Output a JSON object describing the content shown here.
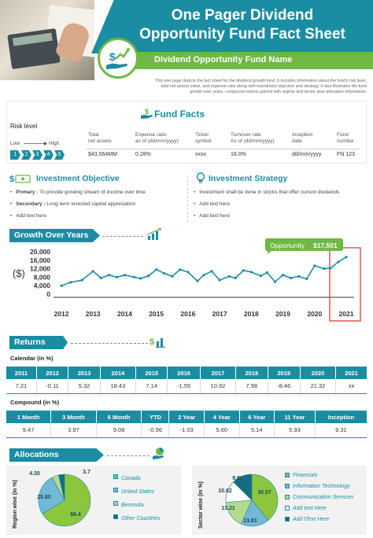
{
  "header": {
    "title_line1": "One Pager Dividend",
    "title_line2": "Opportunity Fund Fact Sheet",
    "subtitle": "Dividend Opportunity Fund Name",
    "description": "This one page depicts the fact sheet for the dividend growth fund. It includes information about the fund's risk level, total net assets value, and expense ratio along with investment objective and strategy. It also illustrates the fund growth over years, compound returns gained with regime and sector wise allocation information."
  },
  "fund_facts": {
    "title": "Fund Facts",
    "risk_level_label": "Risk level",
    "low_label": "Low",
    "high_label": "High",
    "risk_steps": [
      "1",
      "2",
      "3",
      "4",
      "5"
    ],
    "columns": [
      {
        "label1": "Total",
        "label2": "net assets",
        "value": "$43,564MM"
      },
      {
        "label1": "Expense ratio",
        "label2": "as of (dd/mm/yyyy)",
        "value": "0.28%"
      },
      {
        "label1": "Ticker",
        "label2": "symbol",
        "value": "xxxx"
      },
      {
        "label1": "Turnover rate",
        "label2": "As of (dd/mm/yyyy)",
        "value": "18.0%"
      },
      {
        "label1": "Inception",
        "label2": "date",
        "value": "dd/mm/yyyy"
      },
      {
        "label1": "Fund",
        "label2": "number",
        "value": "FN 123"
      }
    ]
  },
  "objective": {
    "title": "Investment Objective",
    "items": [
      {
        "bold": "Primary :",
        "text": " To provide growing stream of income over time"
      },
      {
        "bold": "Secondary :",
        "text": " Long term invested capital appreciation"
      },
      {
        "bold": "",
        "text": "Add text here"
      }
    ]
  },
  "strategy": {
    "title": "Investment Strategy",
    "items": [
      "Investment shall be done in stocks that offer current dividends",
      "Add text here",
      "Add text here"
    ]
  },
  "growth": {
    "title": "Growth Over Years",
    "callout_label": "Opportunity",
    "callout_value": "$17,501",
    "ylabel": "($)"
  },
  "chart_data": {
    "type": "line",
    "x_ticks": [
      "2012",
      "2013",
      "2014",
      "2015",
      "2016",
      "2017",
      "2018",
      "2019",
      "2020",
      "2021"
    ],
    "y_ticks": [
      "0",
      "4,000",
      "8,000",
      "12,000",
      "16,000",
      "20,000"
    ],
    "ylim": [
      0,
      20000
    ],
    "xlim": [
      2012,
      2021.2
    ],
    "ylabel": "($)",
    "series": [
      {
        "color": "#1a8da3",
        "x": [
          2012.0,
          2012.3,
          2012.65,
          2013.0,
          2013.25,
          2013.5,
          2013.75,
          2014.0,
          2014.3,
          2014.5,
          2014.75,
          2015.0,
          2015.25,
          2015.5,
          2015.75,
          2016.0,
          2016.3,
          2016.5,
          2016.75,
          2017.0,
          2017.3,
          2017.5,
          2017.75,
          2018.0,
          2018.3,
          2018.5,
          2018.75,
          2019.0,
          2019.25,
          2019.5,
          2019.75,
          2020.0,
          2020.3,
          2020.5,
          2020.75,
          2021.0
        ],
        "y": [
          4000,
          5600,
          6600,
          10800,
          7600,
          9000,
          8000,
          9000,
          8000,
          7400,
          8600,
          11600,
          9800,
          8400,
          11600,
          10400,
          6200,
          9000,
          10800,
          6600,
          8400,
          7600,
          11200,
          10400,
          8600,
          10200,
          5800,
          9000,
          7600,
          8400,
          7200,
          13400,
          12000,
          12200,
          15200,
          17500
        ]
      }
    ],
    "highlight_year": "2021"
  },
  "returns": {
    "title": "Returns",
    "calendar_label": "Calendar (in %)",
    "calendar_headers": [
      "2011",
      "2012",
      "2013",
      "2014",
      "2015",
      "2016",
      "2017",
      "2018",
      "2019",
      "2020",
      "2021"
    ],
    "calendar_values": [
      "7.21",
      "-0.11",
      "5.32",
      "18.43",
      "7.14",
      "-1.55",
      "10.92",
      "7.98",
      "-8.46",
      "21.32",
      "xx"
    ],
    "compound_label": "Compound (in %)",
    "compound_headers": [
      "1 Month",
      "3 Month",
      "6 Month",
      "YTD",
      "2 Year",
      "4 Year",
      "6 Year",
      "11 Year",
      "Inception"
    ],
    "compound_values": [
      "9.47",
      "3.97",
      "9.08",
      "-0.56",
      "-1.03",
      "5.60",
      "5.14",
      "5.93",
      "9.31"
    ]
  },
  "allocations": {
    "title": "Allocations",
    "region": {
      "label": "Region wise (in %)",
      "slices": [
        {
          "name": "Canada",
          "value": 66.4,
          "color": "#8cc63f"
        },
        {
          "name": "United States",
          "value": 25.8,
          "color": "#74b8d8"
        },
        {
          "name": "Bermuda",
          "value": 4.3,
          "color": "#b5d98a"
        },
        {
          "name": "Other Countries",
          "value": 3.7,
          "color": "#156c80"
        }
      ],
      "labels": [
        "66.4",
        "25.80",
        "4.30",
        "3.7"
      ]
    },
    "sector": {
      "label": "Sector wise (in %)",
      "slices": [
        {
          "name": "Financials",
          "value": 30.57,
          "color": "#8cc63f"
        },
        {
          "name": "Information Technology",
          "value": 13.81,
          "color": "#74b8d8"
        },
        {
          "name": "Communication Services",
          "value": 13.21,
          "color": "#b5d98a"
        },
        {
          "name": "Add tText Here",
          "value": 10.82,
          "color": "#ffffff"
        },
        {
          "name": "Add tText Here",
          "value": 9.81,
          "color": "#156c80"
        }
      ],
      "legend": [
        "Financials",
        "Information Technology",
        "Communication Services",
        "Add text Here",
        "Add tText Here"
      ],
      "labels": [
        "30.57",
        "13.81",
        "13.21",
        "10.82",
        "9.81"
      ]
    }
  }
}
